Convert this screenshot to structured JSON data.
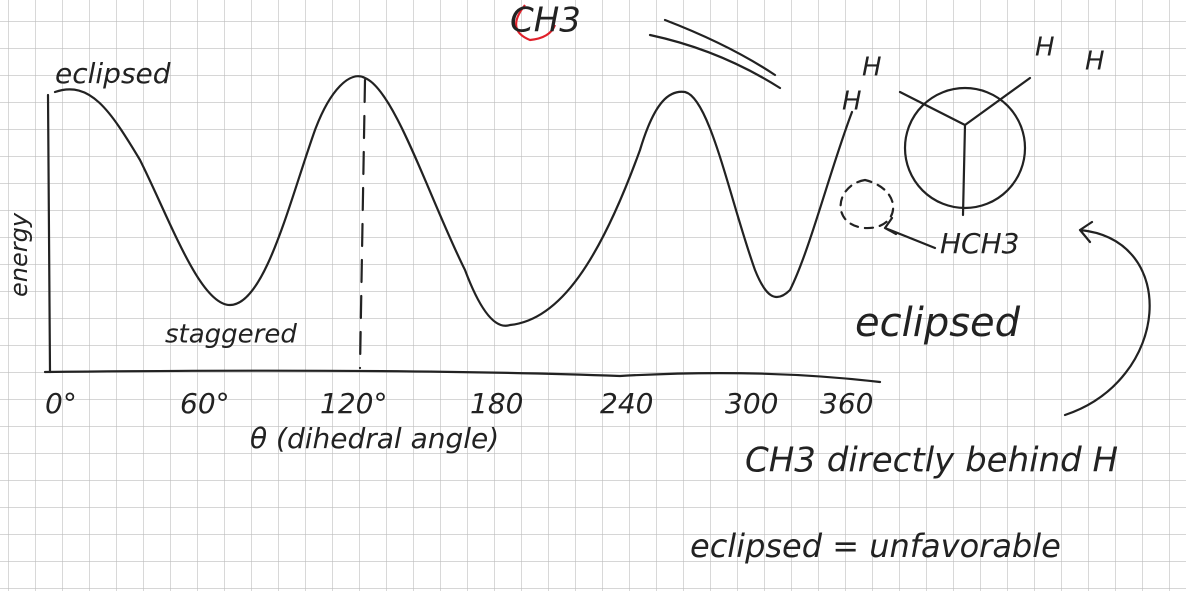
{
  "graph": {
    "peak_label": "eclipsed",
    "y_label": "energy",
    "trough_label": "staggered",
    "x_ticks": [
      "0°",
      "60°",
      "120°",
      "180",
      "240",
      "300",
      "360"
    ],
    "x_label": "θ (dihedral angle)"
  },
  "top_note": "CH3",
  "newman": {
    "labels": [
      "H",
      "H",
      "H",
      "H",
      "HCH3"
    ],
    "caption": "eclipsed"
  },
  "notes": [
    "CH3 directly behind H",
    "eclipsed = unfavorable"
  ]
}
